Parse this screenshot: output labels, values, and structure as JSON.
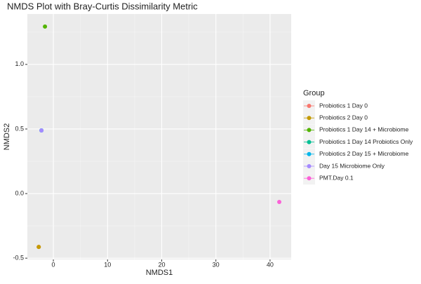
{
  "chart_data": {
    "type": "scatter",
    "title": "NMDS Plot with Bray-Curtis Dissimilarity Metric",
    "x_label": "NMDS1",
    "y_label": "NMDS2",
    "legend_title": "Group",
    "legend_position": "right",
    "xlim": [
      -4.8,
      43.9
    ],
    "ylim": [
      -0.51,
      1.39
    ],
    "xticks": [
      0,
      10,
      20,
      30,
      40
    ],
    "yticks": [
      {
        "value": 1,
        "label": "1.0"
      },
      0.5,
      {
        "value": 0,
        "label": "0.0"
      },
      -0.5
    ],
    "x_minor_grid": [
      5,
      15,
      25,
      35
    ],
    "y_minor_grid": [
      1.25,
      0.75,
      0.25,
      -0.25
    ],
    "grid": true,
    "series": [
      {
        "name": "Probiotics 1 Day 0",
        "color": "#F8766D",
        "x": [
          -2.7
        ],
        "y": [
          -0.413
        ]
      },
      {
        "name": "Probiotics 2 Day 0",
        "color": "#C49A00",
        "x": [
          -2.7
        ],
        "y": [
          -0.413
        ]
      },
      {
        "name": "Probiotics 1 Day 14 + Microbiome",
        "color": "#53B400",
        "x": [
          -1.55
        ],
        "y": [
          1.293
        ]
      },
      {
        "name": "Probiotics 1 Day 14 Probiotics Only",
        "color": "#00C094",
        "x": [
          -2.2
        ],
        "y": [
          0.489
        ]
      },
      {
        "name": "Probiotics 2 Day 15 + Microbiome",
        "color": "#00B6EB",
        "x": [
          -2.2
        ],
        "y": [
          0.489
        ]
      },
      {
        "name": "Day 15 Microbiome Only",
        "color": "#A58AFF",
        "x": [
          -2.2
        ],
        "y": [
          0.489
        ]
      },
      {
        "name": "PMT.Day 0.1",
        "color": "#FB61D7",
        "x": [
          41.7
        ],
        "y": [
          -0.065
        ]
      }
    ]
  }
}
